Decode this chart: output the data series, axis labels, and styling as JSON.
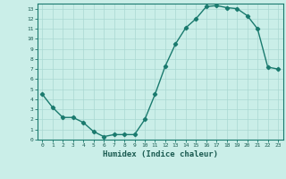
{
  "x": [
    0,
    1,
    2,
    3,
    4,
    5,
    6,
    7,
    8,
    9,
    10,
    11,
    12,
    13,
    14,
    15,
    16,
    17,
    18,
    19,
    20,
    21,
    22,
    23
  ],
  "y": [
    4.5,
    3.2,
    2.2,
    2.2,
    1.7,
    0.8,
    0.3,
    0.5,
    0.5,
    0.5,
    2.0,
    4.5,
    7.3,
    9.5,
    11.1,
    12.0,
    13.2,
    13.3,
    13.1,
    13.0,
    12.3,
    11.0,
    7.2,
    7.0
  ],
  "xlim": [
    -0.5,
    23.5
  ],
  "ylim": [
    0,
    13.5
  ],
  "xlabel": "Humidex (Indice chaleur)",
  "line_color": "#1a7a6e",
  "bg_color": "#caeee8",
  "grid_color": "#aad8d2",
  "tick_label_color": "#1a5a50",
  "xlabel_color": "#1a5a50",
  "yticks": [
    0,
    1,
    2,
    3,
    4,
    5,
    6,
    7,
    8,
    9,
    10,
    11,
    12,
    13
  ],
  "xticks": [
    0,
    1,
    2,
    3,
    4,
    5,
    6,
    7,
    8,
    9,
    10,
    11,
    12,
    13,
    14,
    15,
    16,
    17,
    18,
    19,
    20,
    21,
    22,
    23
  ],
  "marker": "D",
  "marker_size": 2.2,
  "line_width": 1.0
}
